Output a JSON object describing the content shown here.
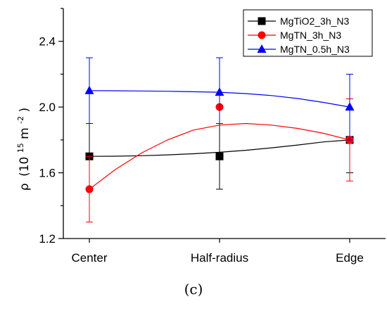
{
  "chart_data": {
    "type": "line",
    "categories": [
      "Center",
      "Half-radius",
      "Edge"
    ],
    "ylabel_symbol": "ρ",
    "ylabel_base": "(10",
    "ylabel_exp": "15",
    "ylabel_unit": " m",
    "ylabel_unit_exp": "-2",
    "ylabel_close": ")",
    "ylim": [
      1.2,
      2.6
    ],
    "yticks": [
      1.2,
      1.6,
      2.0,
      2.4
    ],
    "ytick_labels": [
      "1.2",
      "1.6",
      "2.0",
      "2.4"
    ],
    "legend_position": "top-right",
    "caption": "(c)",
    "series": [
      {
        "name": "MgTiO2_3h_N3",
        "color": "#000000",
        "marker": "square",
        "values": [
          1.7,
          1.7,
          1.8
        ],
        "err_plus": [
          0.2,
          0.2,
          0.25
        ],
        "err_minus": [
          0.2,
          0.2,
          0.2
        ],
        "fit": [
          1.7,
          1.701,
          1.704,
          1.709,
          1.716,
          1.725,
          1.737,
          1.752,
          1.769,
          1.788,
          1.8
        ]
      },
      {
        "name": "MgTN_3h_N3",
        "color": "#ff0000",
        "marker": "circle",
        "values": [
          1.5,
          2.0,
          1.8
        ],
        "err_plus": [
          0.2,
          0.0,
          0.25
        ],
        "err_minus": [
          0.2,
          0.0,
          0.25
        ],
        "fit": [
          1.5,
          1.62,
          1.72,
          1.8,
          1.86,
          1.89,
          1.9,
          1.89,
          1.87,
          1.84,
          1.8
        ]
      },
      {
        "name": "MgTN_0.5h_N3",
        "color": "#0000ff",
        "marker": "triangle",
        "values": [
          2.1,
          2.09,
          2.0
        ],
        "err_plus": [
          0.2,
          0.21,
          0.2
        ],
        "err_minus": [
          0.2,
          0.19,
          0.2
        ],
        "fit": [
          2.1,
          2.099,
          2.098,
          2.096,
          2.093,
          2.09,
          2.082,
          2.07,
          2.052,
          2.028,
          2.0
        ]
      }
    ]
  }
}
